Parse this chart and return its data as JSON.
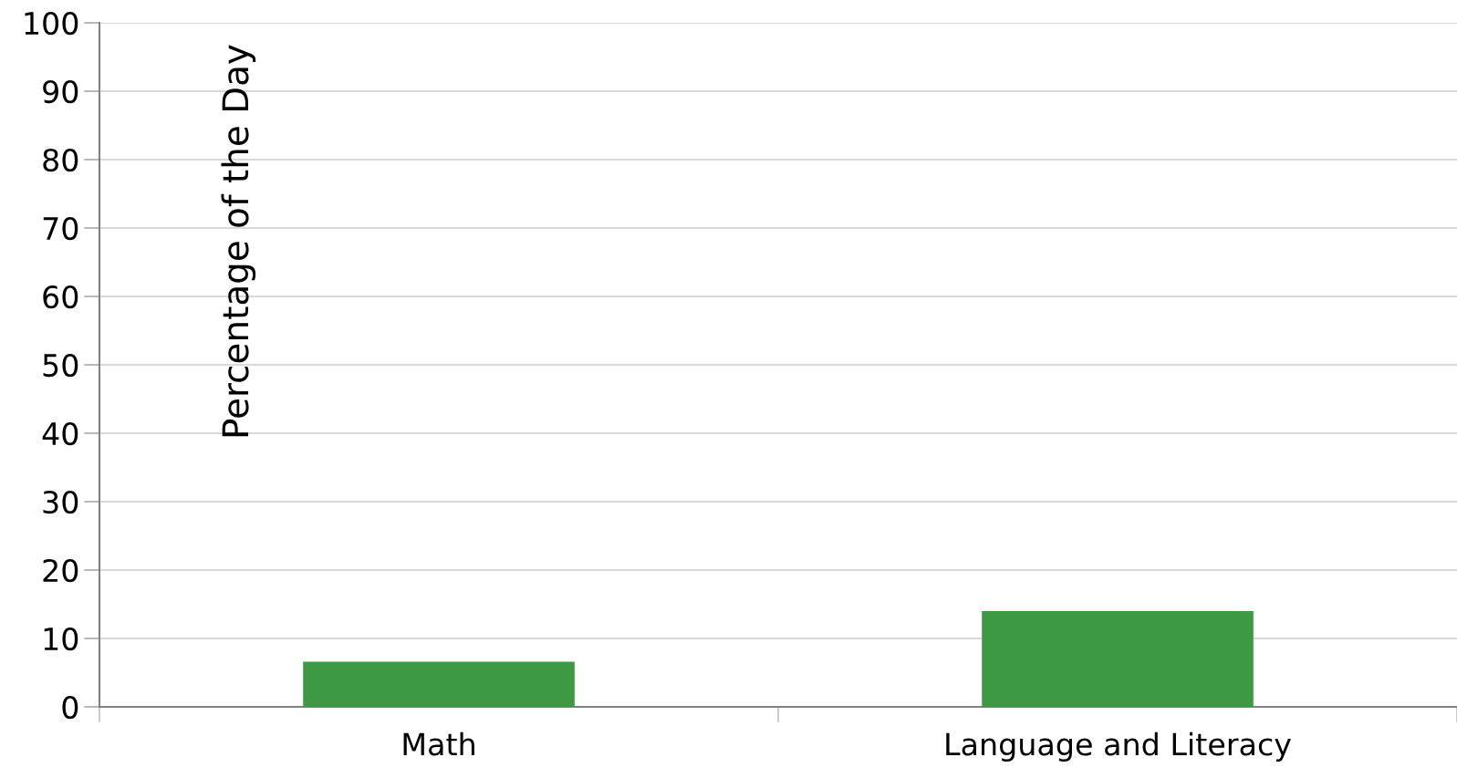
{
  "chart_data": {
    "type": "bar",
    "ylabel": "Percentage of the Day",
    "categories": [
      "Math",
      "Language and Literacy"
    ],
    "values": [
      6.6,
      14.0
    ],
    "color": "#3d9942",
    "ylim": [
      0,
      100
    ],
    "yticks": [
      0,
      10,
      20,
      30,
      40,
      50,
      60,
      70,
      80,
      90,
      100
    ],
    "grid": "y",
    "legend": false
  }
}
